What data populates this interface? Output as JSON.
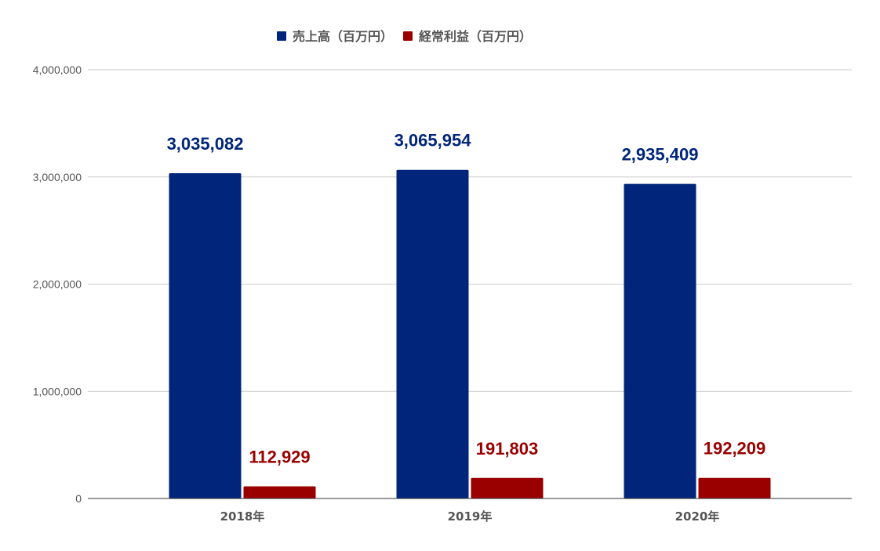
{
  "chart_data": {
    "type": "bar",
    "categories": [
      "2018年",
      "2019年",
      "2020年"
    ],
    "series": [
      {
        "name": "売上高（百万円）",
        "color": "#00257a",
        "values": [
          3035082,
          3065954,
          2935409
        ],
        "labels": [
          "3,035,082",
          "3,065,954",
          "2,935,409"
        ]
      },
      {
        "name": "経常利益（百万円）",
        "color": "#9b0000",
        "values": [
          112929,
          191803,
          192209
        ],
        "labels": [
          "112,929",
          "191,803",
          "192,209"
        ]
      }
    ],
    "title": "",
    "xlabel": "",
    "ylabel": "",
    "ylim": [
      0,
      4000000
    ],
    "yticks": [
      0,
      1000000,
      2000000,
      3000000,
      4000000
    ],
    "ytick_labels": [
      "0",
      "1,000,000",
      "2,000,000",
      "3,000,000",
      "4,000,000"
    ],
    "grid": true,
    "legend_position": "top-center",
    "grid_color": "#cccccc",
    "axis_color": "#333333"
  }
}
